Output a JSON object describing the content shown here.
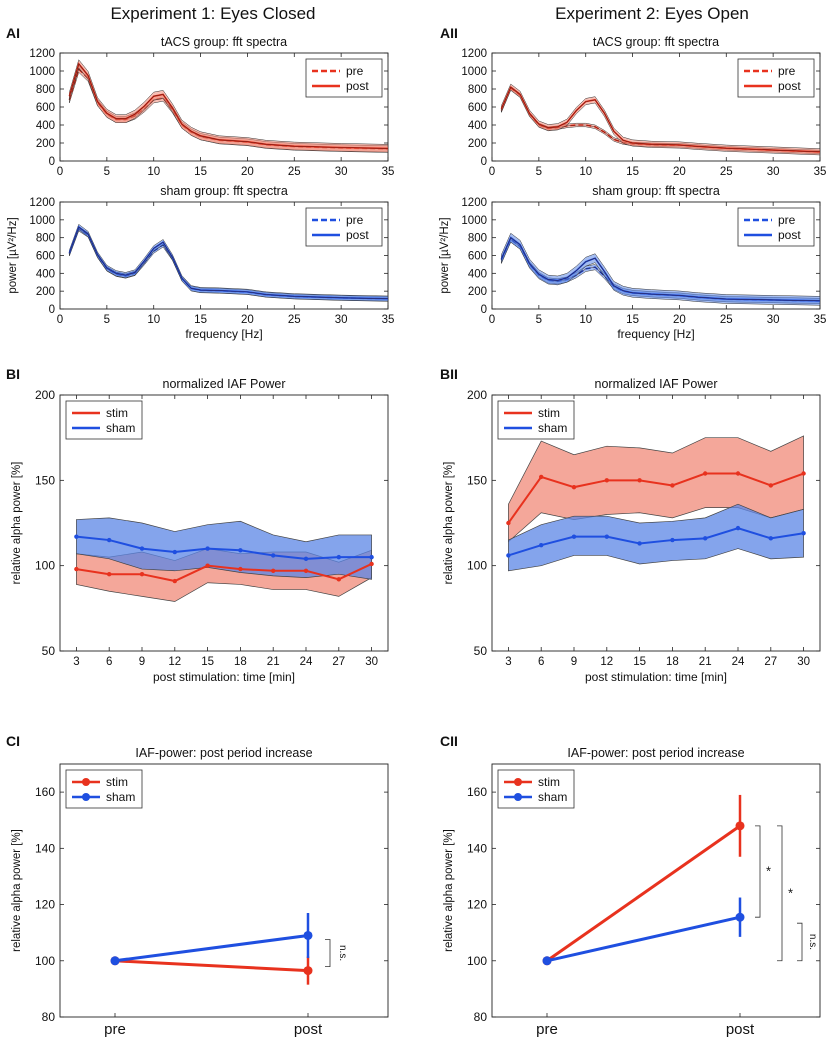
{
  "headers": {
    "left": "Experiment 1: Eyes Closed",
    "right": "Experiment 2: Eyes Open"
  },
  "colors": {
    "stim": "#e8321e",
    "stim_fill": "#f08a78",
    "sham": "#1f4fe0",
    "sham_fill": "#5b86e6",
    "axis": "#222222",
    "grid_text": "#111111"
  },
  "chart_data": [
    {
      "id": "AI",
      "panel_label": "AI",
      "type": "line",
      "kind": "spectrum",
      "title": "tACS group: fft spectra",
      "xlabel": "",
      "ylabel": "",
      "xlim": [
        0,
        35
      ],
      "ylim": [
        0,
        1200
      ],
      "xticks": [
        0,
        5,
        10,
        15,
        20,
        25,
        30,
        35
      ],
      "yticks": [
        0,
        200,
        400,
        600,
        800,
        1000,
        1200
      ],
      "x": [
        1,
        2,
        3,
        4,
        5,
        6,
        7,
        8,
        9,
        10,
        11,
        12,
        13,
        14,
        15,
        17,
        20,
        22,
        25,
        30,
        35
      ],
      "series": [
        {
          "name": "pre",
          "style": "dashed",
          "color": "#e8321e",
          "values": [
            680,
            1020,
            920,
            650,
            520,
            460,
            460,
            500,
            580,
            680,
            700,
            570,
            400,
            320,
            270,
            230,
            210,
            180,
            160,
            145,
            135
          ],
          "band": 35
        },
        {
          "name": "post",
          "style": "solid",
          "color": "#e8321e",
          "values": [
            720,
            1080,
            950,
            660,
            530,
            470,
            470,
            520,
            610,
            720,
            740,
            590,
            410,
            330,
            280,
            235,
            215,
            185,
            165,
            150,
            140
          ],
          "band": 45
        }
      ],
      "legend": [
        "pre",
        "post"
      ],
      "legend_position": "top-right"
    },
    {
      "id": "AII",
      "panel_label": "AII",
      "type": "line",
      "kind": "spectrum",
      "title": "tACS group: fft spectra",
      "xlabel": "",
      "ylabel": "",
      "xlim": [
        0,
        35
      ],
      "ylim": [
        0,
        1200
      ],
      "xticks": [
        0,
        5,
        10,
        15,
        20,
        25,
        30,
        35
      ],
      "yticks": [
        0,
        200,
        400,
        600,
        800,
        1000,
        1200
      ],
      "x": [
        1,
        2,
        3,
        4,
        5,
        6,
        7,
        8,
        9,
        10,
        11,
        12,
        13,
        14,
        15,
        17,
        20,
        22,
        25,
        30,
        35
      ],
      "series": [
        {
          "name": "pre",
          "style": "dashed",
          "color": "#e8321e",
          "values": [
            560,
            810,
            730,
            520,
            400,
            360,
            370,
            390,
            400,
            400,
            380,
            320,
            240,
            205,
            190,
            180,
            175,
            160,
            140,
            120,
            100
          ],
          "band": 20
        },
        {
          "name": "post",
          "style": "solid",
          "color": "#e8321e",
          "values": [
            580,
            820,
            740,
            530,
            410,
            370,
            380,
            430,
            560,
            660,
            680,
            530,
            330,
            230,
            200,
            185,
            178,
            162,
            142,
            122,
            102
          ],
          "band": 35
        }
      ],
      "legend": [
        "pre",
        "post"
      ],
      "legend_position": "top-right"
    },
    {
      "id": "AI-sham",
      "panel_label": "",
      "type": "line",
      "kind": "spectrum",
      "title": "sham group: fft spectra",
      "xlabel": "frequency [Hz]",
      "ylabel": "power [µV²/Hz]",
      "xlim": [
        0,
        35
      ],
      "ylim": [
        0,
        1200
      ],
      "xticks": [
        0,
        5,
        10,
        15,
        20,
        25,
        30,
        35
      ],
      "yticks": [
        0,
        200,
        400,
        600,
        800,
        1000,
        1200
      ],
      "x": [
        1,
        2,
        3,
        4,
        5,
        6,
        7,
        8,
        9,
        10,
        11,
        12,
        13,
        14,
        15,
        17,
        20,
        22,
        25,
        30,
        35
      ],
      "series": [
        {
          "name": "pre",
          "style": "dashed",
          "color": "#1f4fe0",
          "values": [
            620,
            900,
            830,
            600,
            450,
            390,
            370,
            400,
            520,
            650,
            720,
            570,
            340,
            230,
            210,
            205,
            190,
            160,
            140,
            125,
            115
          ],
          "band": 25
        },
        {
          "name": "post",
          "style": "solid",
          "color": "#1f4fe0",
          "values": [
            630,
            920,
            840,
            610,
            460,
            400,
            380,
            410,
            540,
            680,
            750,
            580,
            345,
            232,
            212,
            207,
            192,
            162,
            142,
            126,
            116
          ],
          "band": 30
        }
      ],
      "legend": [
        "pre",
        "post"
      ],
      "legend_position": "top-right"
    },
    {
      "id": "AII-sham",
      "panel_label": "",
      "type": "line",
      "kind": "spectrum",
      "title": "sham group: fft spectra",
      "xlabel": "frequency [Hz]",
      "ylabel": "power [µV²/Hz]",
      "xlim": [
        0,
        35
      ],
      "ylim": [
        0,
        1200
      ],
      "xticks": [
        0,
        5,
        10,
        15,
        20,
        25,
        30,
        35
      ],
      "yticks": [
        0,
        200,
        400,
        600,
        800,
        1000,
        1200
      ],
      "x": [
        1,
        2,
        3,
        4,
        5,
        6,
        7,
        8,
        9,
        10,
        11,
        12,
        13,
        14,
        15,
        17,
        20,
        22,
        25,
        30,
        35
      ],
      "series": [
        {
          "name": "pre",
          "style": "dashed",
          "color": "#1f4fe0",
          "values": [
            550,
            780,
            700,
            500,
            380,
            320,
            310,
            330,
            380,
            450,
            470,
            370,
            250,
            200,
            180,
            165,
            150,
            130,
            110,
            100,
            90
          ],
          "band": 30
        },
        {
          "name": "post",
          "style": "solid",
          "color": "#1f4fe0",
          "values": [
            560,
            800,
            720,
            510,
            390,
            330,
            320,
            350,
            430,
            530,
            570,
            420,
            260,
            205,
            182,
            167,
            152,
            132,
            112,
            102,
            92
          ],
          "band": 50
        }
      ],
      "legend": [
        "pre",
        "post"
      ],
      "legend_position": "top-right"
    },
    {
      "id": "BI",
      "panel_label": "BI",
      "type": "line",
      "kind": "band_time",
      "title": "normalized IAF Power",
      "xlabel": "post stimulation: time [min]",
      "ylabel": "relative alpha power [%]",
      "xlim": [
        1.5,
        31.5
      ],
      "ylim": [
        50,
        200
      ],
      "xticks": [
        3,
        6,
        9,
        12,
        15,
        18,
        21,
        24,
        27,
        30
      ],
      "yticks": [
        50,
        100,
        150,
        200
      ],
      "x": [
        3,
        6,
        9,
        12,
        15,
        18,
        21,
        24,
        27,
        30
      ],
      "series": [
        {
          "name": "stim",
          "color": "#e8321e",
          "values": [
            98,
            95,
            95,
            91,
            100,
            98,
            97,
            97,
            92,
            101
          ],
          "lower": [
            89,
            85,
            82,
            79,
            90,
            89,
            86,
            86,
            82,
            93
          ],
          "upper": [
            107,
            105,
            108,
            103,
            110,
            107,
            108,
            108,
            102,
            109
          ]
        },
        {
          "name": "sham",
          "color": "#1f4fe0",
          "values": [
            117,
            115,
            110,
            108,
            110,
            109,
            106,
            104,
            105,
            105
          ],
          "lower": [
            107,
            104,
            98,
            97,
            99,
            96,
            94,
            93,
            95,
            92
          ],
          "upper": [
            127,
            128,
            125,
            120,
            124,
            126,
            118,
            114,
            118,
            118
          ]
        }
      ],
      "legend": [
        "stim",
        "sham"
      ],
      "legend_position": "top-left"
    },
    {
      "id": "BII",
      "panel_label": "BII",
      "type": "line",
      "kind": "band_time",
      "title": "normalized IAF Power",
      "xlabel": "post stimulation: time [min]",
      "ylabel": "relative alpha power [%]",
      "xlim": [
        1.5,
        31.5
      ],
      "ylim": [
        50,
        200
      ],
      "xticks": [
        3,
        6,
        9,
        12,
        15,
        18,
        21,
        24,
        27,
        30
      ],
      "yticks": [
        50,
        100,
        150,
        200
      ],
      "x": [
        3,
        6,
        9,
        12,
        15,
        18,
        21,
        24,
        27,
        30
      ],
      "series": [
        {
          "name": "stim",
          "color": "#e8321e",
          "values": [
            125,
            152,
            146,
            150,
            150,
            147,
            154,
            154,
            147,
            154
          ],
          "lower": [
            114,
            131,
            127,
            130,
            131,
            128,
            134,
            134,
            128,
            133
          ],
          "upper": [
            136,
            173,
            165,
            170,
            169,
            166,
            175,
            175,
            167,
            176
          ]
        },
        {
          "name": "sham",
          "color": "#1f4fe0",
          "values": [
            106,
            112,
            117,
            117,
            113,
            115,
            116,
            122,
            116,
            119
          ],
          "lower": [
            97,
            100,
            106,
            106,
            101,
            103,
            104,
            110,
            104,
            105
          ],
          "upper": [
            115,
            124,
            129,
            129,
            125,
            126,
            128,
            136,
            128,
            133
          ]
        }
      ],
      "legend": [
        "stim",
        "sham"
      ],
      "legend_position": "top-left"
    },
    {
      "id": "CI",
      "panel_label": "CI",
      "type": "line",
      "kind": "prepost",
      "title": "IAF-power: post period increase",
      "xlabel": "",
      "ylabel": "relative alpha power [%]",
      "ylim": [
        80,
        170
      ],
      "yticks": [
        80,
        100,
        120,
        140,
        160
      ],
      "categories": [
        "pre",
        "post"
      ],
      "series": [
        {
          "name": "stim",
          "color": "#e8321e",
          "values": [
            100,
            96.5
          ],
          "err": [
            0,
            5
          ]
        },
        {
          "name": "sham",
          "color": "#1f4fe0",
          "values": [
            100,
            109
          ],
          "err": [
            0,
            8
          ]
        }
      ],
      "annotations": [
        {
          "text": "n.s.",
          "between": [
            "stim",
            "sham"
          ]
        }
      ],
      "legend": [
        "stim",
        "sham"
      ],
      "legend_position": "top-left"
    },
    {
      "id": "CII",
      "panel_label": "CII",
      "type": "line",
      "kind": "prepost",
      "title": "IAF-power: post period increase",
      "xlabel": "",
      "ylabel": "relative alpha power [%]",
      "ylim": [
        80,
        170
      ],
      "yticks": [
        80,
        100,
        120,
        140,
        160
      ],
      "categories": [
        "pre",
        "post"
      ],
      "series": [
        {
          "name": "stim",
          "color": "#e8321e",
          "values": [
            100,
            148
          ],
          "err": [
            0,
            11
          ]
        },
        {
          "name": "sham",
          "color": "#1f4fe0",
          "values": [
            100,
            115.5
          ],
          "err": [
            0,
            7
          ]
        }
      ],
      "annotations": [
        {
          "text": "*",
          "between": [
            "stim_post",
            "sham_post"
          ]
        },
        {
          "text": "*",
          "between": [
            "stim_post",
            "pre"
          ]
        },
        {
          "text": "n.s.",
          "between": [
            "sham_post",
            "pre"
          ]
        }
      ],
      "legend": [
        "stim",
        "sham"
      ],
      "legend_position": "top-left"
    }
  ]
}
